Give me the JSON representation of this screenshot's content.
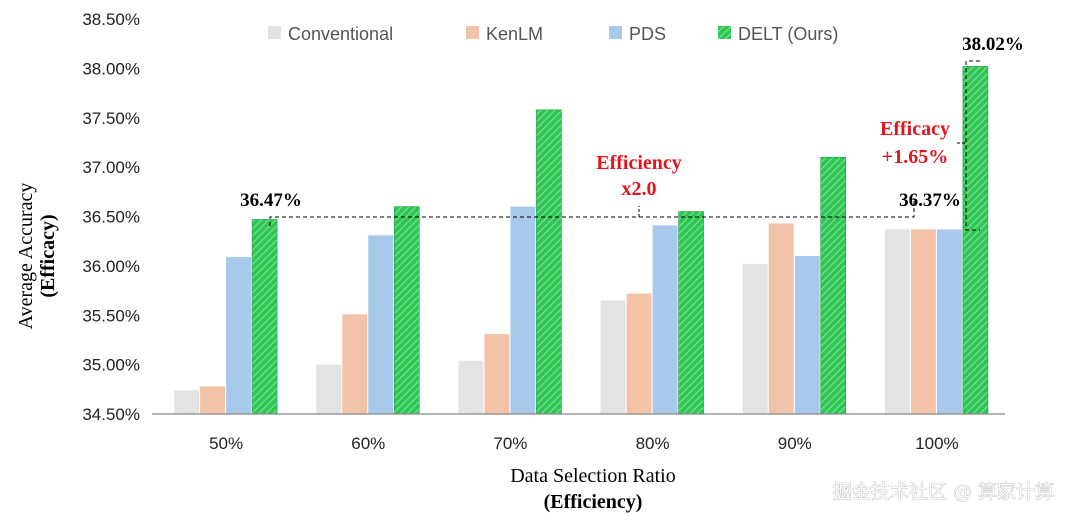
{
  "chart_data": {
    "type": "bar",
    "categories": [
      "50%",
      "60%",
      "70%",
      "80%",
      "90%",
      "100%"
    ],
    "series": [
      {
        "name": "Conventional",
        "color": "#e3e3e3",
        "values": [
          34.74,
          35.0,
          35.04,
          35.65,
          36.02,
          36.37
        ]
      },
      {
        "name": "KenLM",
        "color": "#f3c3a8",
        "values": [
          34.78,
          35.51,
          35.31,
          35.72,
          36.43,
          36.37
        ]
      },
      {
        "name": "PDS",
        "color": "#a9c9ec",
        "values": [
          36.09,
          36.31,
          36.6,
          36.41,
          36.1,
          36.37
        ]
      },
      {
        "name": "DELT (Ours)",
        "color": "#2fc655",
        "pattern": "hatched",
        "values": [
          36.47,
          36.6,
          37.58,
          36.55,
          37.1,
          38.02
        ]
      }
    ],
    "xlabel": "Data Selection Ratio",
    "xlabel_sub": "(Efficiency)",
    "ylabel": "Average Accuracy",
    "ylabel_sub": "(Efficacy)",
    "ylim": [
      34.5,
      38.5
    ],
    "yticks": [
      "34.50%",
      "35.00%",
      "35.50%",
      "36.00%",
      "36.50%",
      "37.00%",
      "37.50%",
      "38.00%",
      "38.50%"
    ],
    "legend_position": "top",
    "annotations": {
      "label_50": "36.47%",
      "label_100_base": "36.37%",
      "label_100_top": "38.02%",
      "efficiency_line1": "Efficiency",
      "efficiency_line2": "x2.0",
      "efficacy_line1": "Efficacy",
      "efficacy_line2": "+1.65%"
    }
  },
  "watermark": "掘金技术社区 @ 算家计算"
}
